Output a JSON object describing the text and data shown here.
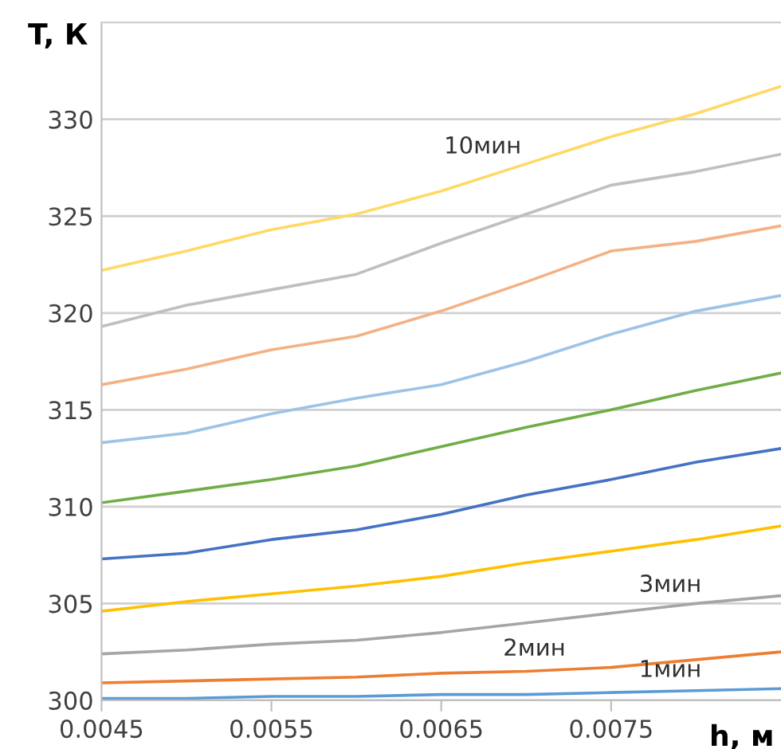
{
  "chart_data": {
    "type": "line",
    "xlabel": "h, м",
    "ylabel": "T, К",
    "x": [
      0.0045,
      0.005,
      0.0055,
      0.006,
      0.0065,
      0.007,
      0.0075,
      0.008,
      0.0085
    ],
    "series": [
      {
        "color": "#5b9bd5",
        "values": [
          300.1,
          300.1,
          300.2,
          300.2,
          300.3,
          300.3,
          300.4,
          300.5,
          300.6
        ]
      },
      {
        "color": "#ed7d31",
        "values": [
          300.9,
          301.0,
          301.1,
          301.2,
          301.4,
          301.5,
          301.7,
          302.1,
          302.5
        ]
      },
      {
        "color": "#a5a5a5",
        "values": [
          302.4,
          302.6,
          302.9,
          303.1,
          303.5,
          304.0,
          304.5,
          305.0,
          305.4
        ]
      },
      {
        "color": "#ffc000",
        "values": [
          304.6,
          305.1,
          305.5,
          305.9,
          306.4,
          307.1,
          307.7,
          308.3,
          309.0
        ]
      },
      {
        "color": "#4472c4",
        "values": [
          307.3,
          307.6,
          308.3,
          308.8,
          309.6,
          310.6,
          311.4,
          312.3,
          313.0
        ]
      },
      {
        "color": "#70ad47",
        "values": [
          310.2,
          310.8,
          311.4,
          312.1,
          313.1,
          314.1,
          315.0,
          316.0,
          316.9
        ]
      },
      {
        "color": "#9dc3e6",
        "values": [
          313.3,
          313.8,
          314.8,
          315.6,
          316.3,
          317.5,
          318.9,
          320.1,
          320.9
        ]
      },
      {
        "color": "#f4b183",
        "values": [
          316.3,
          317.1,
          318.1,
          318.8,
          320.1,
          321.6,
          323.2,
          323.7,
          324.5
        ]
      },
      {
        "color": "#bfbfbf",
        "values": [
          319.3,
          320.4,
          321.2,
          322.0,
          323.6,
          325.1,
          326.6,
          327.3,
          328.2
        ]
      },
      {
        "color": "#ffd966",
        "values": [
          322.2,
          323.2,
          324.3,
          325.1,
          326.3,
          327.7,
          329.1,
          330.3,
          331.7
        ]
      }
    ],
    "annotations": [
      {
        "text": "10мин",
        "x": 0.0069,
        "y": 327.3
      },
      {
        "text": "3мин",
        "x": 0.0079,
        "y": 304.9
      },
      {
        "text": "2мин",
        "x": 0.0071,
        "y": 301.6
      },
      {
        "text": "1мин",
        "x": 0.0079,
        "y": 300.5
      }
    ],
    "xlim": [
      0.0045,
      0.0085
    ],
    "ylim": [
      300,
      335
    ],
    "xticks": [
      0.0045,
      0.0055,
      0.0065,
      0.0075
    ],
    "yticks": [
      300,
      305,
      310,
      315,
      320,
      325,
      330
    ],
    "grid": "y",
    "marker": "none",
    "line_style": "solid",
    "legend": false
  }
}
